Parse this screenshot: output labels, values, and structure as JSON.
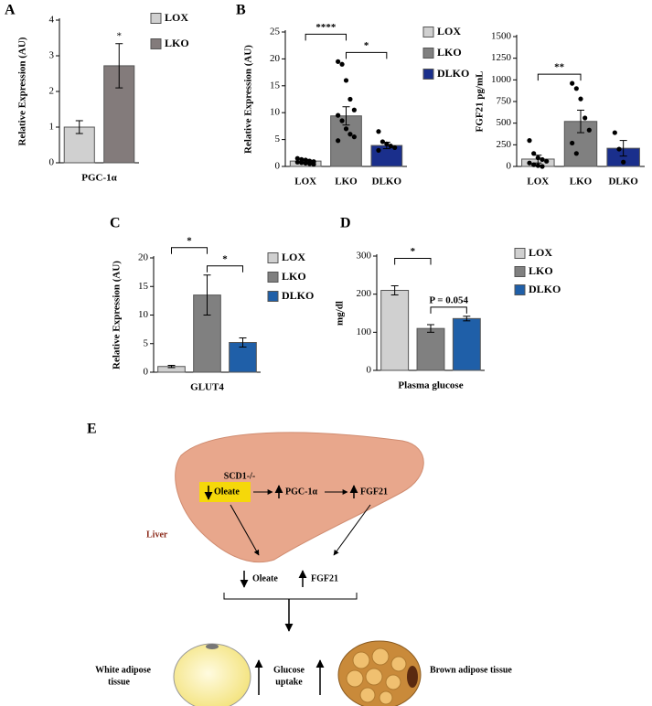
{
  "chart_data": [
    {
      "type": "bar",
      "panel": "A",
      "ylabel": "Relative Expression (AU)",
      "categories": [
        "PGC-1α"
      ],
      "series": [
        {
          "name": "LOX",
          "color": "#d0d0d0",
          "values": [
            1.0
          ],
          "errors": [
            0.18
          ]
        },
        {
          "name": "LKO",
          "color": "#837b7b",
          "values": [
            2.72
          ],
          "errors": [
            0.62
          ]
        }
      ],
      "ylim": [
        0,
        4
      ],
      "yticks": [
        0,
        1,
        2,
        3,
        4
      ],
      "significance": [
        "*"
      ]
    },
    {
      "type": "bar",
      "panel": "B",
      "ylabel": "Relative Expression (AU)",
      "categories": [
        "LOX",
        "LKO",
        "DLKO"
      ],
      "legend": [
        "LOX",
        "LKO",
        "DLKO"
      ],
      "series": [
        {
          "colors": [
            "#d0d0d0",
            "#808080",
            "#1a2f8c"
          ],
          "values": [
            1.0,
            9.4,
            3.9
          ],
          "errors": [
            0.3,
            1.7,
            0.6
          ],
          "points": [
            [
              1.5,
              1.3,
              1.2,
              1.0,
              0.9,
              0.8,
              0.7,
              0.6,
              0.5,
              0.4
            ],
            [
              19.5,
              19.0,
              16.0,
              12.5,
              10.5,
              9.5,
              8.5,
              7.0,
              6.0,
              5.5,
              4.8
            ],
            [
              6.5,
              4.6,
              4.2,
              3.8,
              3.5,
              3.0
            ]
          ]
        }
      ],
      "ylim": [
        0,
        25
      ],
      "yticks": [
        0,
        5,
        10,
        15,
        20,
        25
      ],
      "significance": [
        "****",
        "*"
      ]
    },
    {
      "type": "bar",
      "ylabel": "FGF21 pg/mL",
      "categories": [
        "LOX",
        "LKO",
        "DLKO"
      ],
      "series": [
        {
          "colors": [
            "#d0d0d0",
            "#808080",
            "#1a2f8c"
          ],
          "values": [
            85,
            520,
            210
          ],
          "errors": [
            45,
            130,
            90
          ],
          "points": [
            [
              300,
              150,
              100,
              80,
              60,
              40,
              20,
              10,
              0
            ],
            [
              960,
              900,
              780,
              560,
              420,
              270,
              150
            ],
            [
              390,
              200,
              50
            ]
          ]
        }
      ],
      "ylim": [
        0,
        1500
      ],
      "yticks": [
        0,
        250,
        500,
        750,
        1000,
        1250,
        1500
      ],
      "significance": [
        "**"
      ]
    },
    {
      "type": "bar",
      "panel": "C",
      "ylabel": "Relative Expression (AU)",
      "categories": [
        "GLUT4"
      ],
      "series": [
        {
          "name": "LOX",
          "color": "#d0d0d0",
          "values": [
            1.0
          ],
          "errors": [
            0.2
          ]
        },
        {
          "name": "LKO",
          "color": "#808080",
          "values": [
            13.5
          ],
          "errors": [
            3.5
          ]
        },
        {
          "name": "DLKO",
          "color": "#1f5fa8",
          "values": [
            5.2
          ],
          "errors": [
            0.8
          ]
        }
      ],
      "ylim": [
        0,
        20
      ],
      "yticks": [
        0,
        5,
        10,
        15,
        20
      ],
      "significance": [
        "*",
        "*"
      ]
    },
    {
      "type": "bar",
      "panel": "D",
      "ylabel": "mg/dl",
      "categories": [
        "Plasma glucose"
      ],
      "series": [
        {
          "name": "LOX",
          "color": "#d0d0d0",
          "values": [
            210
          ],
          "errors": [
            12
          ]
        },
        {
          "name": "LKO",
          "color": "#808080",
          "values": [
            110
          ],
          "errors": [
            10
          ]
        },
        {
          "name": "DLKO",
          "color": "#1f5fa8",
          "values": [
            136
          ],
          "errors": [
            6
          ]
        }
      ],
      "ylim": [
        0,
        300
      ],
      "yticks": [
        0,
        100,
        200,
        300
      ],
      "significance": [
        "*",
        "P = 0.054"
      ]
    }
  ],
  "diagram": {
    "panel": "E",
    "knockout": "SCD1-/-",
    "oleate": "Oleate",
    "pgc": "PGC-1α",
    "fgf21": "FGF21",
    "organ": "Liver",
    "circ_oleate": "Oleate",
    "circ_fgf21": "FGF21",
    "white_adipose": [
      "White adipose",
      "tissue"
    ],
    "glucose": [
      "Glucose",
      "uptake"
    ],
    "brown_adipose": "Brown adipose tissue"
  }
}
